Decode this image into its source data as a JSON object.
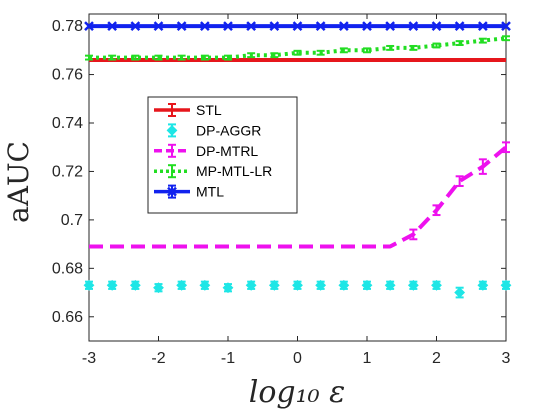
{
  "chart_data": {
    "type": "line",
    "xlabel": "log₁₀ ε",
    "ylabel": "aAUC",
    "xlim": [
      -3,
      3
    ],
    "ylim": [
      0.65,
      0.785
    ],
    "xticks": [
      -3,
      -2,
      -1,
      0,
      1,
      2,
      3
    ],
    "xtick_labels": [
      "-3",
      "-2",
      "-1",
      "0",
      "1",
      "2",
      "3"
    ],
    "yticks": [
      0.66,
      0.68,
      0.7,
      0.72,
      0.74,
      0.76,
      0.78
    ],
    "ytick_labels": [
      "0.66",
      "0.68",
      "0.7",
      "0.72",
      "0.74",
      "0.76",
      "0.78"
    ],
    "grid": false,
    "legend_position": "upper-left",
    "x": [
      -3,
      -2.667,
      -2.333,
      -2,
      -1.667,
      -1.333,
      -1,
      -0.667,
      -0.333,
      0,
      0.333,
      0.667,
      1,
      1.333,
      1.667,
      2,
      2.333,
      2.667,
      3
    ],
    "series": [
      {
        "name": "STL",
        "color": "#e6161c",
        "style": "solid",
        "marker": "errorbar",
        "values": [
          0.766,
          0.766,
          0.766,
          0.766,
          0.766,
          0.766,
          0.766,
          0.766,
          0.766,
          0.766,
          0.766,
          0.766,
          0.766,
          0.766,
          0.766,
          0.766,
          0.766,
          0.766,
          0.766
        ],
        "errors": [
          0,
          0,
          0,
          0,
          0,
          0,
          0,
          0,
          0,
          0,
          0,
          0,
          0,
          0,
          0,
          0,
          0,
          0,
          0
        ]
      },
      {
        "name": "DP-AGGR",
        "color": "#1ee6e6",
        "style": "none",
        "marker": "diamond",
        "values": [
          0.673,
          0.673,
          0.673,
          0.672,
          0.673,
          0.673,
          0.672,
          0.673,
          0.673,
          0.673,
          0.673,
          0.673,
          0.673,
          0.673,
          0.673,
          0.673,
          0.67,
          0.673,
          0.673
        ],
        "errors": [
          0.0015,
          0.0015,
          0.0015,
          0.0015,
          0.0015,
          0.0015,
          0.0015,
          0.0015,
          0.0015,
          0.0015,
          0.0015,
          0.0015,
          0.0015,
          0.0015,
          0.0015,
          0.0015,
          0.002,
          0.0015,
          0.0015
        ]
      },
      {
        "name": "DP-MTRL",
        "color": "#ee11ee",
        "style": "dashed",
        "marker": "errorbar",
        "values": [
          0.689,
          0.689,
          0.689,
          0.689,
          0.689,
          0.689,
          0.689,
          0.689,
          0.689,
          0.689,
          0.689,
          0.689,
          0.689,
          0.689,
          0.694,
          0.704,
          0.716,
          0.722,
          0.73
        ],
        "errors": [
          0,
          0,
          0,
          0,
          0,
          0,
          0,
          0,
          0,
          0,
          0,
          0,
          0,
          0,
          0.002,
          0.002,
          0.002,
          0.003,
          0.002
        ]
      },
      {
        "name": "MP-MTL-LR",
        "color": "#22dd22",
        "style": "dotted",
        "marker": "errorbar",
        "values": [
          0.767,
          0.767,
          0.767,
          0.767,
          0.767,
          0.767,
          0.767,
          0.768,
          0.768,
          0.769,
          0.769,
          0.77,
          0.77,
          0.771,
          0.771,
          0.772,
          0.773,
          0.774,
          0.775
        ],
        "errors": [
          0.0008,
          0.0008,
          0.0008,
          0.0008,
          0.0008,
          0.0008,
          0.0008,
          0.0008,
          0.0008,
          0.0008,
          0.0008,
          0.0008,
          0.0008,
          0.0008,
          0.0008,
          0.0008,
          0.0008,
          0.0008,
          0.0008
        ]
      },
      {
        "name": "MTL",
        "color": "#1122ee",
        "style": "solid",
        "marker": "x",
        "values": [
          0.78,
          0.78,
          0.78,
          0.78,
          0.78,
          0.78,
          0.78,
          0.78,
          0.78,
          0.78,
          0.78,
          0.78,
          0.78,
          0.78,
          0.78,
          0.78,
          0.78,
          0.78,
          0.78
        ],
        "errors": [
          0,
          0,
          0,
          0,
          0,
          0,
          0,
          0,
          0,
          0,
          0,
          0,
          0,
          0,
          0,
          0,
          0,
          0,
          0
        ]
      }
    ]
  }
}
